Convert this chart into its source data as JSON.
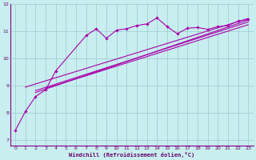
{
  "xlabel": "Windchill (Refroidissement éolien,°C)",
  "bg_color": "#c8eef0",
  "line_color": "#aa00aa",
  "grid_color": "#99cccc",
  "axis_label_color": "#660066",
  "tick_label_color": "#660066",
  "spine_color": "#880088",
  "xlim": [
    -0.5,
    23.5
  ],
  "ylim": [
    6.8,
    12.0
  ],
  "yticks": [
    7,
    8,
    9,
    10,
    11,
    12
  ],
  "xticks": [
    0,
    1,
    2,
    3,
    4,
    5,
    6,
    7,
    8,
    9,
    10,
    11,
    12,
    13,
    14,
    15,
    16,
    17,
    18,
    19,
    20,
    21,
    22,
    23
  ],
  "main_x": [
    0,
    1,
    2,
    3,
    4,
    7,
    8,
    9,
    10,
    11,
    12,
    13,
    14,
    15,
    16,
    17,
    18,
    19,
    20,
    21,
    22,
    23
  ],
  "main_y": [
    7.35,
    8.05,
    8.6,
    8.85,
    9.55,
    10.85,
    11.1,
    10.75,
    11.05,
    11.1,
    11.22,
    11.28,
    11.5,
    11.18,
    10.92,
    11.12,
    11.15,
    11.08,
    11.18,
    11.22,
    11.38,
    11.45
  ],
  "straight_lines": [
    {
      "x": [
        1,
        23
      ],
      "y": [
        8.95,
        11.48
      ]
    },
    {
      "x": [
        2,
        23
      ],
      "y": [
        8.75,
        11.42
      ]
    },
    {
      "x": [
        2,
        23
      ],
      "y": [
        8.82,
        11.35
      ]
    },
    {
      "x": [
        3,
        23
      ],
      "y": [
        8.9,
        11.25
      ]
    }
  ]
}
